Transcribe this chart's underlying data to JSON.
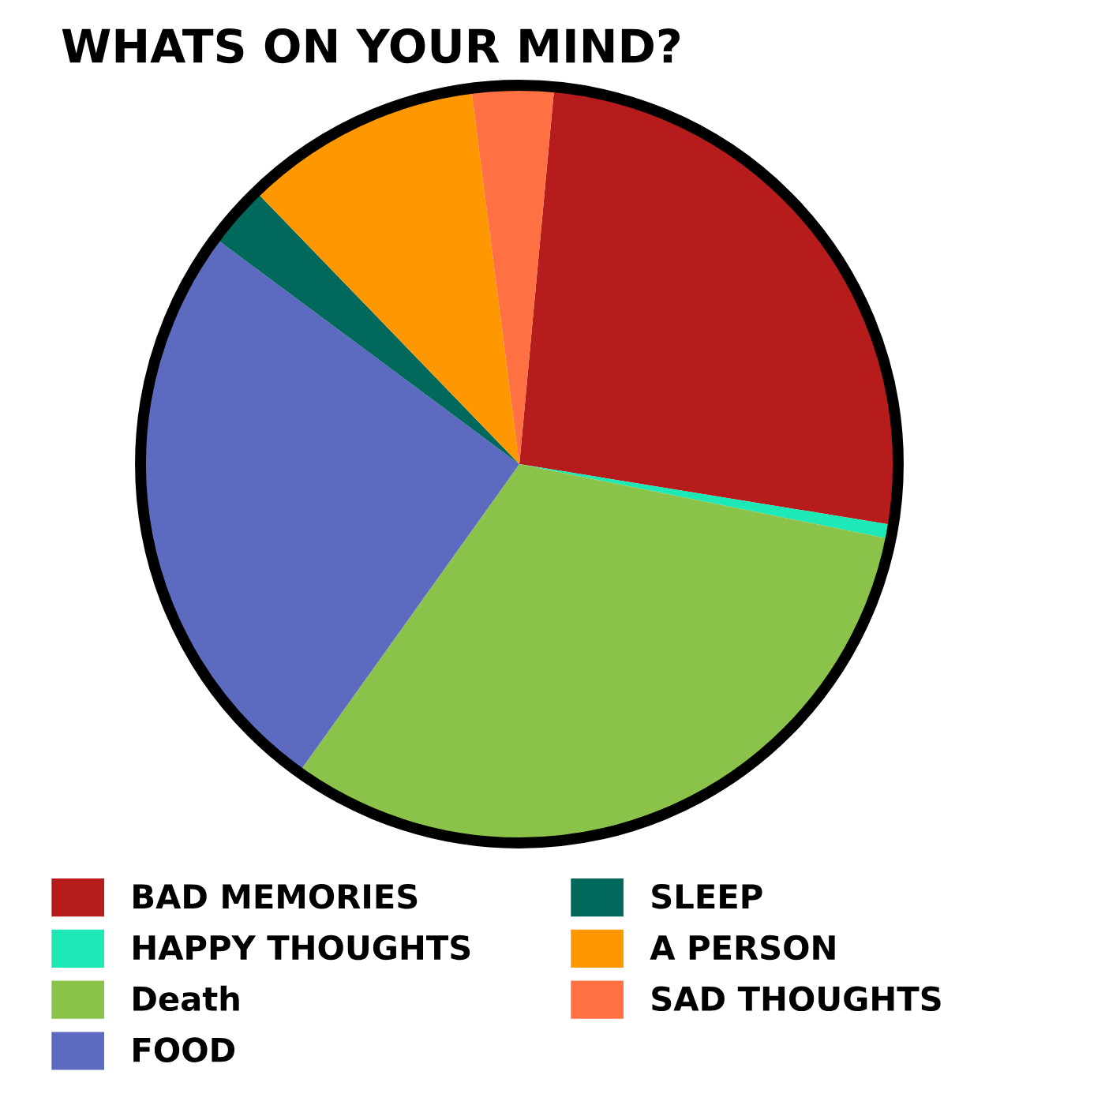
{
  "chart_data": {
    "type": "pie",
    "title": "WHATS ON YOUR MIND?",
    "categories": [
      "BAD MEMORIES",
      "HAPPY THOUGHTS",
      "Death",
      "FOOD",
      "SLEEP",
      "A PERSON",
      "SAD THOUGHTS"
    ],
    "values": [
      26.1,
      0.6,
      31.7,
      25.3,
      2.6,
      10.2,
      3.5
    ],
    "colors": [
      "#b71c1c",
      "#1de9b6",
      "#8bc34a",
      "#5c6bc0",
      "#00695c",
      "#ff9800",
      "#ff7043"
    ],
    "legend": "bottom"
  }
}
